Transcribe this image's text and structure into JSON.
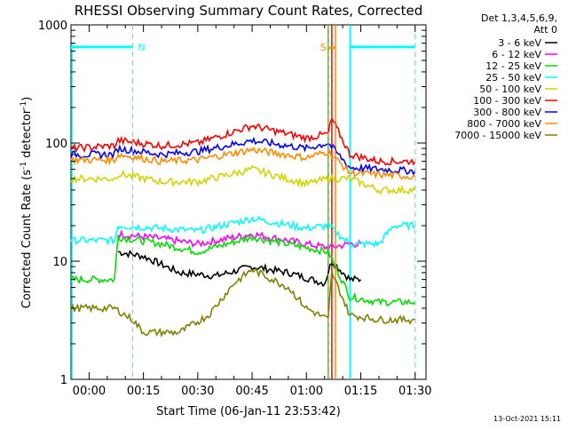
{
  "chart_data": {
    "type": "line",
    "title": "RHESSI Observing Summary Count Rates, Corrected",
    "xlabel": "Start Time (06-Jan-11 23:53:42)",
    "ylabel_main": "Corrected Count Rate (s",
    "ylabel_sup1": "-1",
    "ylabel_mid": " detector",
    "ylabel_sup2": "-1",
    "ylabel_end": ")",
    "yscale": "log",
    "ylim": [
      1,
      1000
    ],
    "xlim_min": [
      -5,
      93
    ],
    "x_ticks": [
      {
        "v": 0,
        "label": "00:00"
      },
      {
        "v": 15,
        "label": "00:15"
      },
      {
        "v": 30,
        "label": "00:30"
      },
      {
        "v": 45,
        "label": "00:45"
      },
      {
        "v": 60,
        "label": "01:00"
      },
      {
        "v": 75,
        "label": "01:15"
      },
      {
        "v": 90,
        "label": "01:30"
      }
    ],
    "y_ticks": [
      {
        "v": 1,
        "label": "1"
      },
      {
        "v": 10,
        "label": "10"
      },
      {
        "v": 100,
        "label": "100"
      },
      {
        "v": 1000,
        "label": "1000"
      }
    ],
    "legend": {
      "placement": "right",
      "header1": "Det 1,3,4,5,6,9,",
      "header2": "Att 0",
      "entries": [
        {
          "name": "3 - 6 keV",
          "color": "#000000"
        },
        {
          "name": "6 - 12 keV",
          "color": "#ff00ff"
        },
        {
          "name": "12 - 25 keV",
          "color": "#00e000"
        },
        {
          "name": "25 - 50 keV",
          "color": "#00ffff"
        },
        {
          "name": "50 - 100 keV",
          "color": "#d4d400"
        },
        {
          "name": "100 - 300 keV",
          "color": "#ff0000"
        },
        {
          "name": "300 - 800 keV",
          "color": "#0000ff"
        },
        {
          "name": "800 - 7000 keV",
          "color": "#ff8c00"
        },
        {
          "name": "7000 - 15000 keV",
          "color": "#808000"
        }
      ]
    },
    "annotations": {
      "night_label": "N",
      "saa_label": "S",
      "night_color": "#00ffff",
      "saa_color": "#ff8c00",
      "night_bar_level": 650,
      "night_intervals": [
        [
          -5,
          12
        ],
        [
          72,
          90
        ]
      ],
      "night_markers": [
        12,
        90
      ],
      "saa_markers": [
        66,
        68
      ],
      "gap_lines": [
        [
          66,
          "#00e000"
        ],
        [
          67,
          "#ff0000"
        ],
        [
          68,
          "#ff8c00"
        ],
        [
          72,
          "#00ffff"
        ]
      ]
    },
    "series": [
      {
        "name": "3 - 6 keV",
        "color": "#000000",
        "points": [
          [
            8,
            12
          ],
          [
            15,
            11
          ],
          [
            25,
            8
          ],
          [
            35,
            7.5
          ],
          [
            45,
            9
          ],
          [
            55,
            8
          ],
          [
            65,
            6.5
          ],
          [
            67,
            10
          ],
          [
            72,
            7
          ],
          [
            75,
            7
          ]
        ]
      },
      {
        "name": "6 - 12 keV",
        "color": "#ff00ff",
        "points": [
          [
            8,
            17
          ],
          [
            20,
            15.5
          ],
          [
            30,
            14
          ],
          [
            45,
            17
          ],
          [
            60,
            14
          ],
          [
            66,
            13
          ],
          [
            72,
            14
          ],
          [
            75,
            14
          ]
        ]
      },
      {
        "name": "12 - 25 keV",
        "color": "#00e000",
        "points": [
          [
            -5,
            7
          ],
          [
            7,
            7
          ],
          [
            8,
            16
          ],
          [
            20,
            14
          ],
          [
            30,
            12
          ],
          [
            45,
            16
          ],
          [
            60,
            13
          ],
          [
            66,
            12
          ],
          [
            72,
            5
          ],
          [
            80,
            4.5
          ],
          [
            90,
            4.5
          ]
        ]
      },
      {
        "name": "25 - 50 keV",
        "color": "#00ffff",
        "points": [
          [
            -5,
            15
          ],
          [
            7,
            15
          ],
          [
            8,
            20
          ],
          [
            20,
            19
          ],
          [
            30,
            18
          ],
          [
            45,
            23
          ],
          [
            60,
            19
          ],
          [
            66,
            20
          ],
          [
            72,
            14
          ],
          [
            80,
            14
          ],
          [
            84,
            20
          ],
          [
            90,
            20
          ]
        ]
      },
      {
        "name": "50 - 100 keV",
        "color": "#d4d400",
        "points": [
          [
            -5,
            50
          ],
          [
            7,
            50
          ],
          [
            8,
            55
          ],
          [
            20,
            47
          ],
          [
            30,
            47
          ],
          [
            45,
            60
          ],
          [
            60,
            45
          ],
          [
            66,
            50
          ],
          [
            72,
            50
          ],
          [
            80,
            40
          ],
          [
            90,
            40
          ]
        ]
      },
      {
        "name": "100 - 300 keV",
        "color": "#ff0000",
        "points": [
          [
            -5,
            90
          ],
          [
            7,
            95
          ],
          [
            8,
            105
          ],
          [
            20,
            95
          ],
          [
            30,
            100
          ],
          [
            45,
            140
          ],
          [
            60,
            110
          ],
          [
            66,
            120
          ],
          [
            67,
            160
          ],
          [
            72,
            80
          ],
          [
            80,
            70
          ],
          [
            90,
            70
          ]
        ]
      },
      {
        "name": "300 - 800 keV",
        "color": "#0000ff",
        "points": [
          [
            -5,
            80
          ],
          [
            7,
            80
          ],
          [
            8,
            90
          ],
          [
            20,
            80
          ],
          [
            30,
            85
          ],
          [
            45,
            105
          ],
          [
            60,
            90
          ],
          [
            66,
            100
          ],
          [
            72,
            62
          ],
          [
            80,
            60
          ],
          [
            90,
            58
          ]
        ]
      },
      {
        "name": "800 - 7000 keV",
        "color": "#ff8c00",
        "points": [
          [
            -5,
            72
          ],
          [
            7,
            72
          ],
          [
            8,
            80
          ],
          [
            20,
            70
          ],
          [
            30,
            72
          ],
          [
            45,
            88
          ],
          [
            60,
            75
          ],
          [
            66,
            85
          ],
          [
            72,
            56
          ],
          [
            80,
            54
          ],
          [
            90,
            52
          ]
        ]
      },
      {
        "name": "7000 - 15000 keV",
        "color": "#808000",
        "points": [
          [
            -5,
            4
          ],
          [
            7,
            4
          ],
          [
            12,
            3.2
          ],
          [
            15,
            2.5
          ],
          [
            25,
            2.5
          ],
          [
            33,
            3.5
          ],
          [
            40,
            6.5
          ],
          [
            45,
            8.5
          ],
          [
            55,
            6
          ],
          [
            60,
            4
          ],
          [
            66,
            3.2
          ],
          [
            67,
            8
          ],
          [
            72,
            3.5
          ],
          [
            80,
            3.2
          ],
          [
            90,
            3.2
          ]
        ]
      }
    ]
  },
  "footer": {
    "timestamp": "13-Oct-2021 15:11"
  }
}
